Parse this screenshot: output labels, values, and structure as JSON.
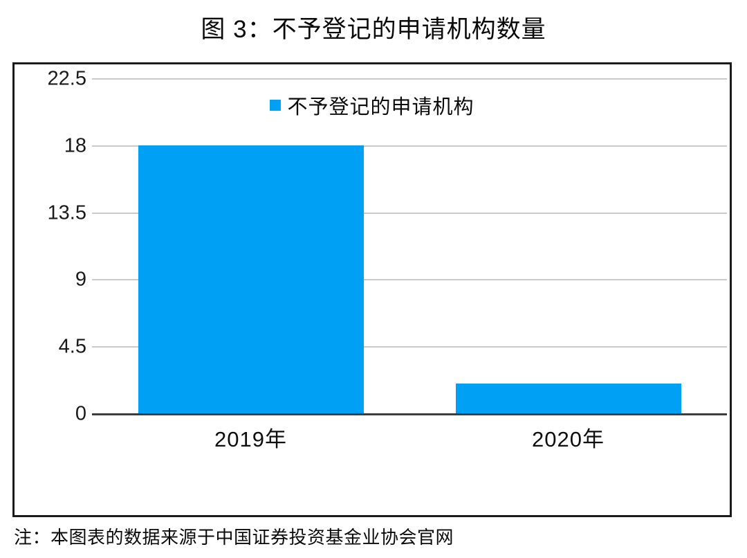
{
  "title": "图 3：不予登记的申请机构数量",
  "legend": {
    "label": "不予登记的申请机构",
    "swatch_color": "#00a0f5"
  },
  "note": "注：本图表的数据来源于中国证券投资基金业协会官网",
  "colors": {
    "bar": "#00a0f5",
    "gridline": "#c9c9c9",
    "axis": "#3c3c3c",
    "frame_border": "#1b1b1b",
    "text": "#0a0a0a"
  },
  "chart_data": {
    "type": "bar",
    "title": "图 3：不予登记的申请机构数量",
    "categories": [
      "2019年",
      "2020年"
    ],
    "series": [
      {
        "name": "不予登记的申请机构",
        "values": [
          18,
          2
        ]
      }
    ],
    "xlabel": "",
    "ylabel": "",
    "ylim": [
      0,
      22.5
    ],
    "yticks": [
      0,
      4.5,
      9,
      13.5,
      18,
      22.5
    ],
    "ytick_labels": [
      "0",
      "4.5",
      "9",
      "13.5",
      "18",
      "22.5"
    ],
    "grid": true,
    "legend_position": "top-center",
    "bar_color": "#00a0f5"
  }
}
